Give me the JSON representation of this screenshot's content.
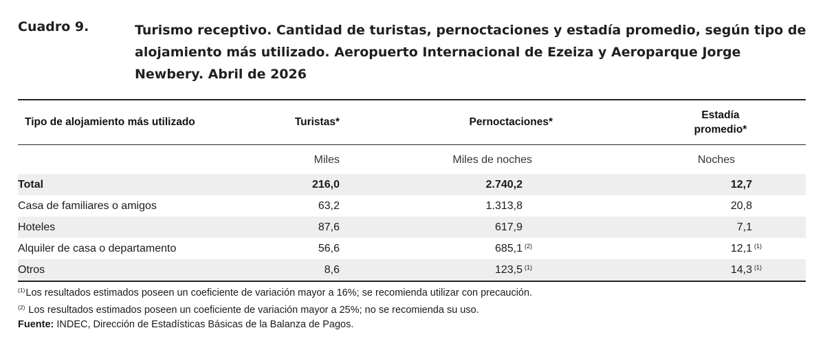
{
  "caption": {
    "label": "Cuadro 9.",
    "title": "Turismo receptivo. Cantidad de turistas, pernoctaciones y estadía promedio, según tipo de alojamiento más utilizado. Aeropuerto Internacional de Ezeiza y Aeroparque Jorge Newbery. Abril de 2026"
  },
  "table": {
    "headers": [
      "Tipo de alojamiento más utilizado",
      "Turistas*",
      "Pernoctaciones*",
      "Estadía promedio*"
    ],
    "units": [
      "",
      "Miles",
      "Miles de noches",
      "Noches"
    ],
    "total": {
      "label": "Total",
      "turistas": "216,0",
      "pernoctaciones": "2.740,2",
      "estadia": "12,7"
    },
    "rows": [
      {
        "label": "Casa de familiares o amigos",
        "turistas": "63,2",
        "pernoctaciones": "1.313,8",
        "pernoctaciones_note": "",
        "estadia": "20,8",
        "estadia_note": ""
      },
      {
        "label": "Hoteles",
        "turistas": "87,6",
        "pernoctaciones": "617,9",
        "pernoctaciones_note": "",
        "estadia": "7,1",
        "estadia_note": ""
      },
      {
        "label": "Alquiler de casa o departamento",
        "turistas": "56,6",
        "pernoctaciones": "685,1",
        "pernoctaciones_note": "(2)",
        "estadia": "12,1",
        "estadia_note": "(1)"
      },
      {
        "label": "Otros",
        "turistas": "8,6",
        "pernoctaciones": "123,5",
        "pernoctaciones_note": "(1)",
        "estadia": "14,3",
        "estadia_note": "(1)"
      }
    ]
  },
  "footnotes": {
    "note1_marker": "(1)",
    "note1_text": "Los resultados estimados poseen un coeficiente de variación mayor a 16%; se recomienda utilizar con precaución.",
    "note2_marker": "(2)",
    "note2_text": "Los resultados estimados poseen un coeficiente de variación mayor a 25%; no se recomienda su uso.",
    "source_label": "Fuente:",
    "source_text": "INDEC, Dirección de Estadísticas Básicas de la Balanza de Pagos."
  }
}
